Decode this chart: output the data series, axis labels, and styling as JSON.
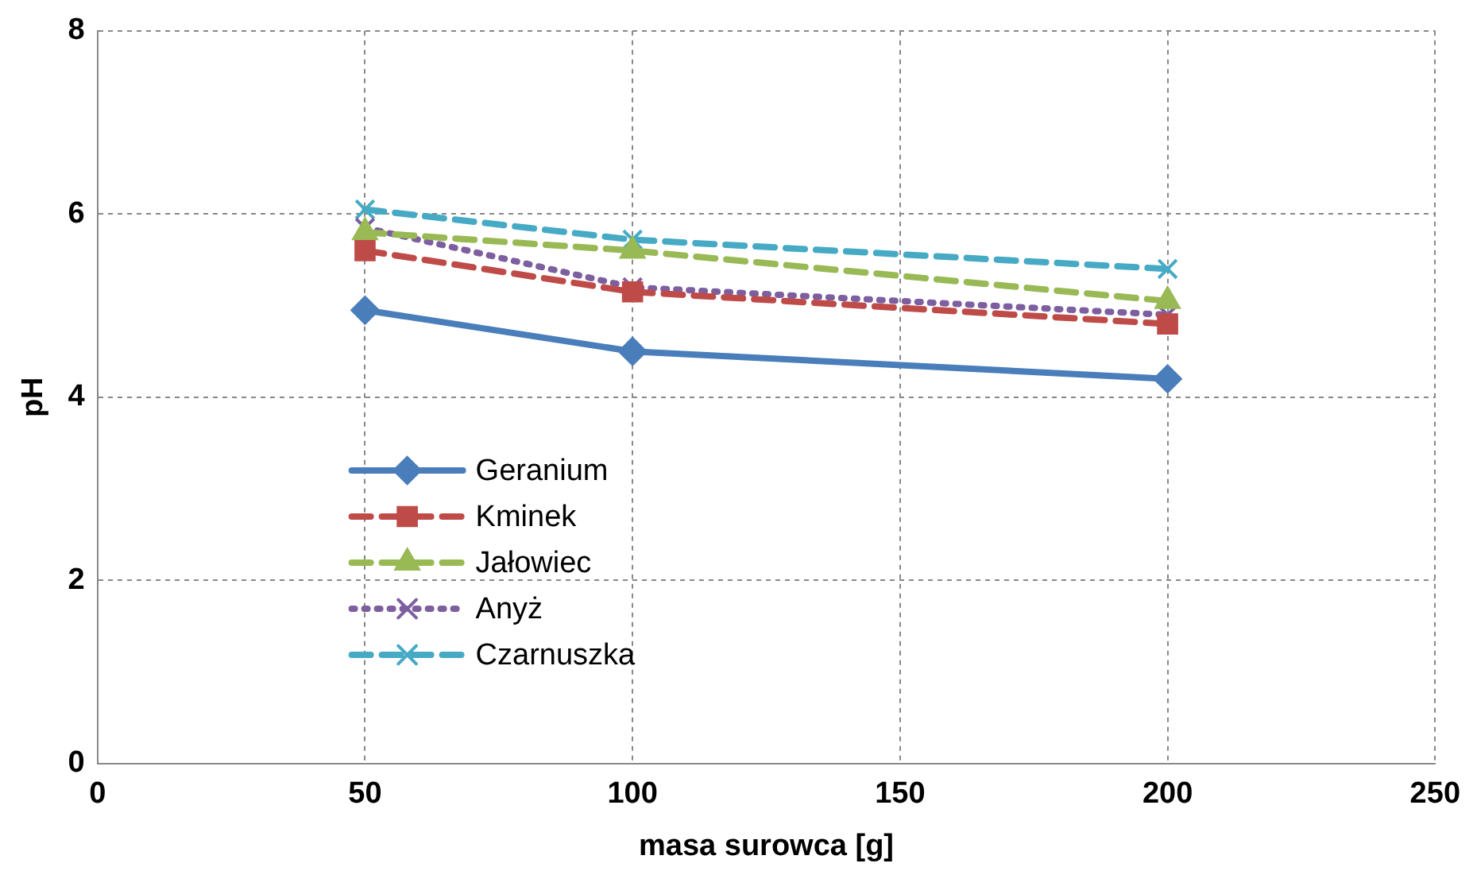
{
  "chart_data": {
    "type": "line",
    "xlabel": "masa surowca [g]",
    "ylabel": "pH",
    "xlim": [
      0,
      250
    ],
    "xticks": [
      0,
      50,
      100,
      150,
      200,
      250
    ],
    "ylim": [
      0,
      8
    ],
    "yticks": [
      0,
      2,
      4,
      6,
      8
    ],
    "grid": true,
    "legend": "left",
    "series": [
      {
        "name": "Geranium",
        "color": "#4a7ebb",
        "x": [
          50,
          100,
          200
        ],
        "values": [
          4.95,
          4.5,
          4.2
        ],
        "marker": "diamond",
        "line_style": "solid"
      },
      {
        "name": "Kminek",
        "color": "#be4b48",
        "x": [
          50,
          100,
          200
        ],
        "values": [
          5.6,
          5.15,
          4.8
        ],
        "marker": "square",
        "line_style": "dashed"
      },
      {
        "name": "Jałowiec",
        "color": "#98b954",
        "x": [
          50,
          100,
          200
        ],
        "values": [
          5.8,
          5.6,
          5.05
        ],
        "marker": "triangle",
        "line_style": "dashed"
      },
      {
        "name": "Anyż",
        "color": "#7d5fa0",
        "x": [
          50,
          100,
          200
        ],
        "values": [
          5.85,
          5.2,
          4.9
        ],
        "marker": "cross",
        "line_style": "dotted"
      },
      {
        "name": "Czarnuszka",
        "color": "#46aac5",
        "x": [
          50,
          100,
          200
        ],
        "values": [
          6.05,
          5.72,
          5.4
        ],
        "marker": "cross",
        "line_style": "dashed"
      }
    ]
  }
}
